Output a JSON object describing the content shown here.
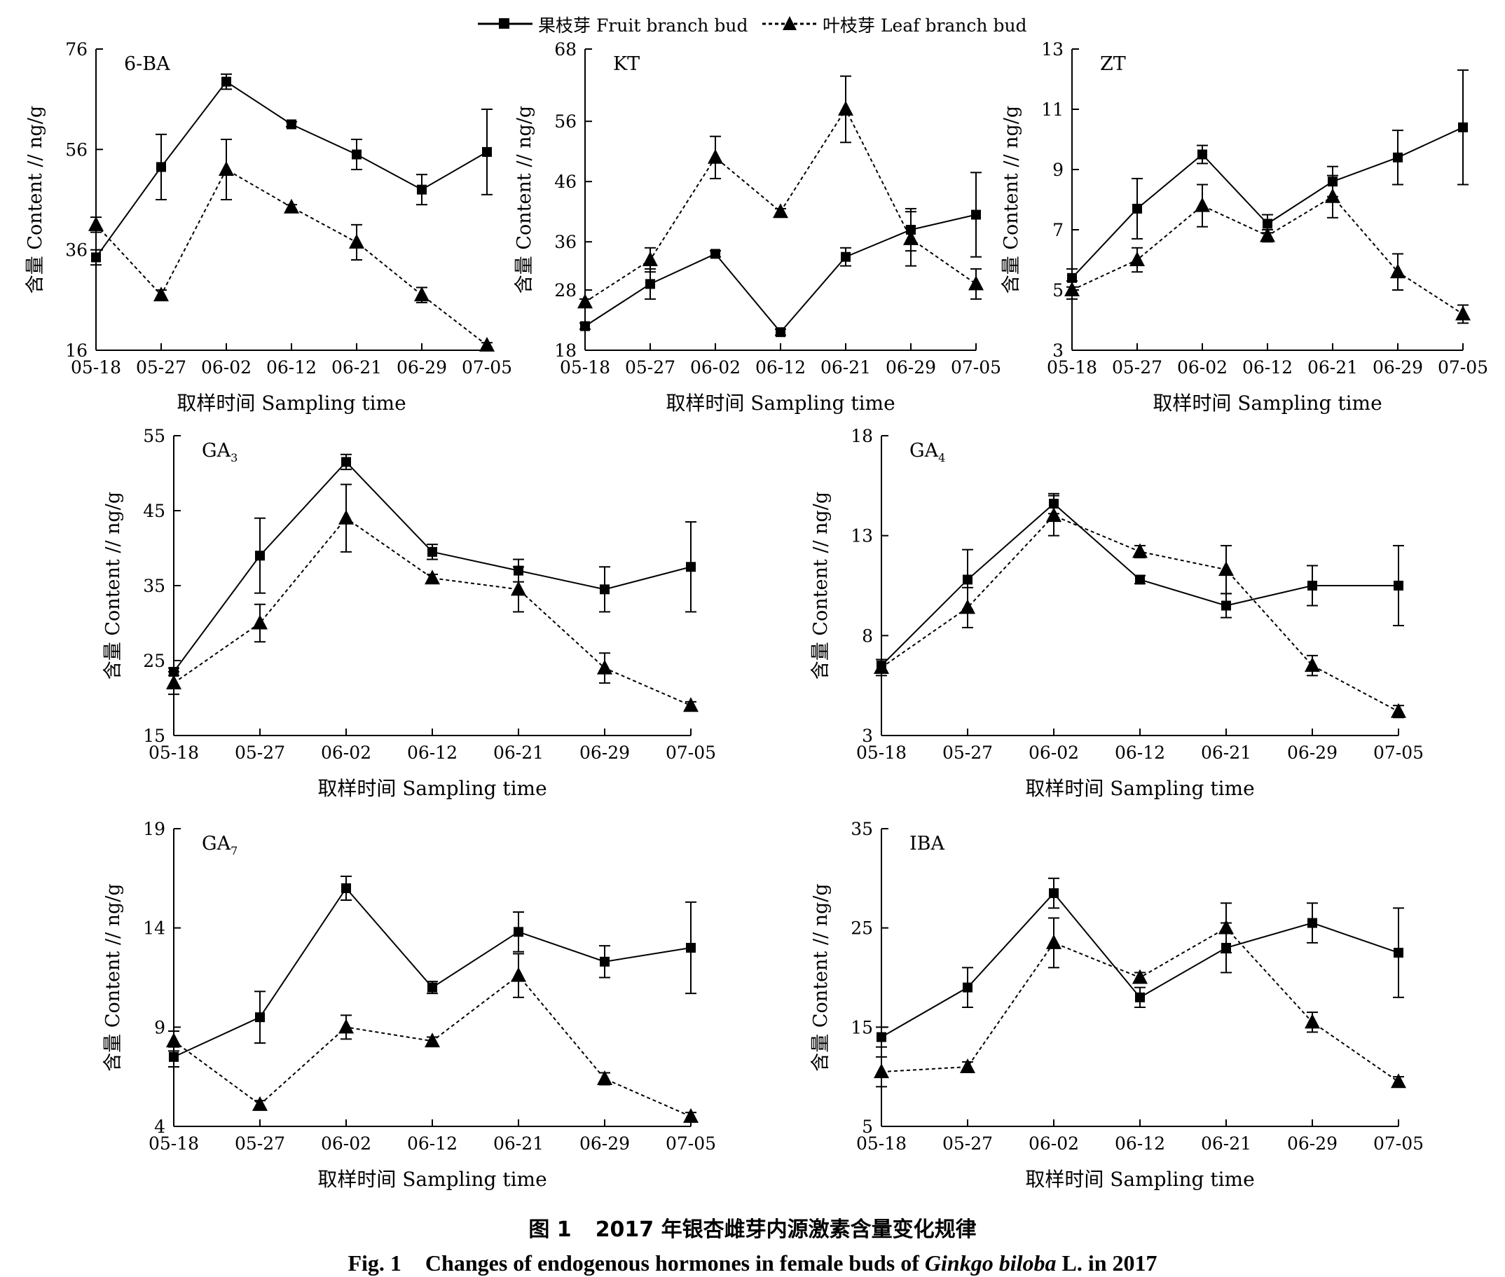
{
  "legend": {
    "fruit_label": "果枝芽 Fruit branch bud",
    "leaf_label": "叶枝芽 Leaf branch bud"
  },
  "caption": {
    "cn_number": "图 1",
    "cn_text": "2017 年银杏雌芽内源激素含量变化规律",
    "en_number": "Fig. 1",
    "en_text_before": "Changes of endogenous hormones in female buds of",
    "en_species": "Ginkgo biloba",
    "en_text_after": "L.  in 2017"
  },
  "chart_data": [
    {
      "type": "line",
      "title": "6-BA",
      "xlabel": "取样时间 Sampling time",
      "ylabel": "含量 Content // ng/g",
      "categories": [
        "05-18",
        "05-27",
        "06-02",
        "06-12",
        "06-21",
        "06-29",
        "07-05"
      ],
      "ylim": [
        16,
        76
      ],
      "yticks": [
        16,
        36,
        56,
        76
      ],
      "series": [
        {
          "name": "果枝芽 Fruit branch bud",
          "values": [
            34.5,
            52.5,
            69.5,
            61.0,
            55.0,
            48.0,
            55.5
          ],
          "errors": [
            1.5,
            6.5,
            1.5,
            0.5,
            3.0,
            3.0,
            8.5
          ]
        },
        {
          "name": "叶枝芽 Leaf branch bud",
          "values": [
            41.0,
            27.0,
            52.0,
            44.5,
            37.5,
            27.0,
            17.0
          ],
          "errors": [
            1.5,
            1.0,
            6.0,
            0.5,
            3.5,
            1.5,
            0.5
          ]
        }
      ]
    },
    {
      "type": "line",
      "title": "KT",
      "xlabel": "取样时间 Sampling time",
      "ylabel": "含量 Content // ng/g",
      "categories": [
        "05-18",
        "05-27",
        "06-02",
        "06-12",
        "06-21",
        "06-29",
        "07-05"
      ],
      "ylim": [
        18,
        68
      ],
      "yticks": [
        18,
        28,
        36,
        46,
        56,
        68
      ],
      "series": [
        {
          "name": "果枝芽 Fruit branch bud",
          "values": [
            22.0,
            29.0,
            34.0,
            21.0,
            33.5,
            38.0,
            40.5
          ],
          "errors": [
            0.5,
            2.5,
            0.5,
            0.5,
            1.5,
            3.5,
            7.0
          ]
        },
        {
          "name": "叶枝芽 Leaf branch bud",
          "values": [
            26.0,
            33.0,
            50.0,
            41.0,
            58.0,
            36.5,
            29.0
          ],
          "errors": [
            0.5,
            2.0,
            3.5,
            0.5,
            5.5,
            4.5,
            2.5
          ]
        }
      ]
    },
    {
      "type": "line",
      "title": "ZT",
      "xlabel": "取样时间 Sampling time",
      "ylabel": "含量 Content // ng/g",
      "categories": [
        "05-18",
        "05-27",
        "06-02",
        "06-12",
        "06-21",
        "06-29",
        "07-05"
      ],
      "ylim": [
        3,
        13
      ],
      "yticks": [
        3,
        5,
        7,
        9,
        11,
        13
      ],
      "series": [
        {
          "name": "果枝芽 Fruit branch bud",
          "values": [
            5.4,
            7.7,
            9.5,
            7.2,
            8.6,
            9.4,
            10.4
          ],
          "errors": [
            0.3,
            1.0,
            0.3,
            0.3,
            0.5,
            0.9,
            1.9
          ]
        },
        {
          "name": "叶枝芽 Leaf branch bud",
          "values": [
            5.0,
            6.0,
            7.8,
            6.8,
            8.1,
            5.6,
            4.2
          ],
          "errors": [
            0.3,
            0.4,
            0.7,
            0.2,
            0.7,
            0.6,
            0.3
          ]
        }
      ]
    },
    {
      "type": "line",
      "title": "GA",
      "title_sub": "3",
      "xlabel": "取样时间 Sampling time",
      "ylabel": "含量 Content // ng/g",
      "categories": [
        "05-18",
        "05-27",
        "06-02",
        "06-12",
        "06-21",
        "06-29",
        "07-05"
      ],
      "ylim": [
        15,
        55
      ],
      "yticks": [
        15,
        25,
        35,
        45,
        55
      ],
      "series": [
        {
          "name": "果枝芽 Fruit branch bud",
          "values": [
            23.5,
            39.0,
            51.5,
            39.5,
            37.0,
            34.5,
            37.5
          ],
          "errors": [
            0.5,
            5.0,
            1.0,
            1.0,
            1.5,
            3.0,
            6.0
          ]
        },
        {
          "name": "叶枝芽 Leaf branch bud",
          "values": [
            22.0,
            30.0,
            44.0,
            36.0,
            34.5,
            24.0,
            19.0
          ],
          "errors": [
            1.5,
            2.5,
            4.5,
            0.5,
            3.0,
            2.0,
            0.5
          ]
        }
      ]
    },
    {
      "type": "line",
      "title": "GA",
      "title_sub": "4",
      "xlabel": "取样时间 Sampling time",
      "ylabel": "含量 Content // ng/g",
      "categories": [
        "05-18",
        "05-27",
        "06-02",
        "06-12",
        "06-21",
        "06-29",
        "07-05"
      ],
      "ylim": [
        3,
        18
      ],
      "yticks": [
        3,
        8,
        13,
        18
      ],
      "series": [
        {
          "name": "果枝芽 Fruit branch bud",
          "values": [
            6.5,
            10.8,
            14.6,
            10.8,
            9.5,
            10.5,
            10.5
          ],
          "errors": [
            0.3,
            1.5,
            0.5,
            0.2,
            0.6,
            1.0,
            2.0
          ]
        },
        {
          "name": "叶枝芽 Leaf branch bud",
          "values": [
            6.4,
            9.4,
            14.0,
            12.2,
            11.3,
            6.5,
            4.2
          ],
          "errors": [
            0.4,
            1.0,
            1.0,
            0.3,
            1.2,
            0.5,
            0.3
          ]
        }
      ]
    },
    {
      "type": "line",
      "title": "GA",
      "title_sub": "7",
      "xlabel": "取样时间 Sampling time",
      "ylabel": "含量 Content // ng/g",
      "categories": [
        "05-18",
        "05-27",
        "06-02",
        "06-12",
        "06-21",
        "06-29",
        "07-05"
      ],
      "ylim": [
        4,
        19
      ],
      "yticks": [
        4,
        9,
        14,
        19
      ],
      "series": [
        {
          "name": "果枝芽 Fruit branch bud",
          "values": [
            7.5,
            9.5,
            16.0,
            11.0,
            13.8,
            12.3,
            13.0
          ],
          "errors": [
            0.5,
            1.3,
            0.6,
            0.3,
            1.0,
            0.8,
            2.3
          ]
        },
        {
          "name": "叶枝芽 Leaf branch bud",
          "values": [
            8.3,
            5.1,
            9.0,
            8.3,
            11.6,
            6.4,
            4.5
          ],
          "errors": [
            0.5,
            0.2,
            0.6,
            0.2,
            1.1,
            0.3,
            0.2
          ]
        }
      ]
    },
    {
      "type": "line",
      "title": "IBA",
      "xlabel": "取样时间 Sampling time",
      "ylabel": "含量 Content // ng/g",
      "categories": [
        "05-18",
        "05-27",
        "06-02",
        "06-12",
        "06-21",
        "06-29",
        "07-05"
      ],
      "ylim": [
        5,
        35
      ],
      "yticks": [
        5,
        15,
        25,
        35
      ],
      "series": [
        {
          "name": "果枝芽 Fruit branch bud",
          "values": [
            14.0,
            19.0,
            28.5,
            18.0,
            23.0,
            25.5,
            22.5
          ],
          "errors": [
            1.0,
            2.0,
            1.5,
            1.0,
            2.5,
            2.0,
            4.5
          ]
        },
        {
          "name": "叶枝芽 Leaf branch bud",
          "values": [
            10.5,
            11.0,
            23.5,
            20.0,
            25.0,
            15.5,
            9.5
          ],
          "errors": [
            1.5,
            0.5,
            2.5,
            0.5,
            2.5,
            1.0,
            0.5
          ]
        }
      ]
    }
  ]
}
